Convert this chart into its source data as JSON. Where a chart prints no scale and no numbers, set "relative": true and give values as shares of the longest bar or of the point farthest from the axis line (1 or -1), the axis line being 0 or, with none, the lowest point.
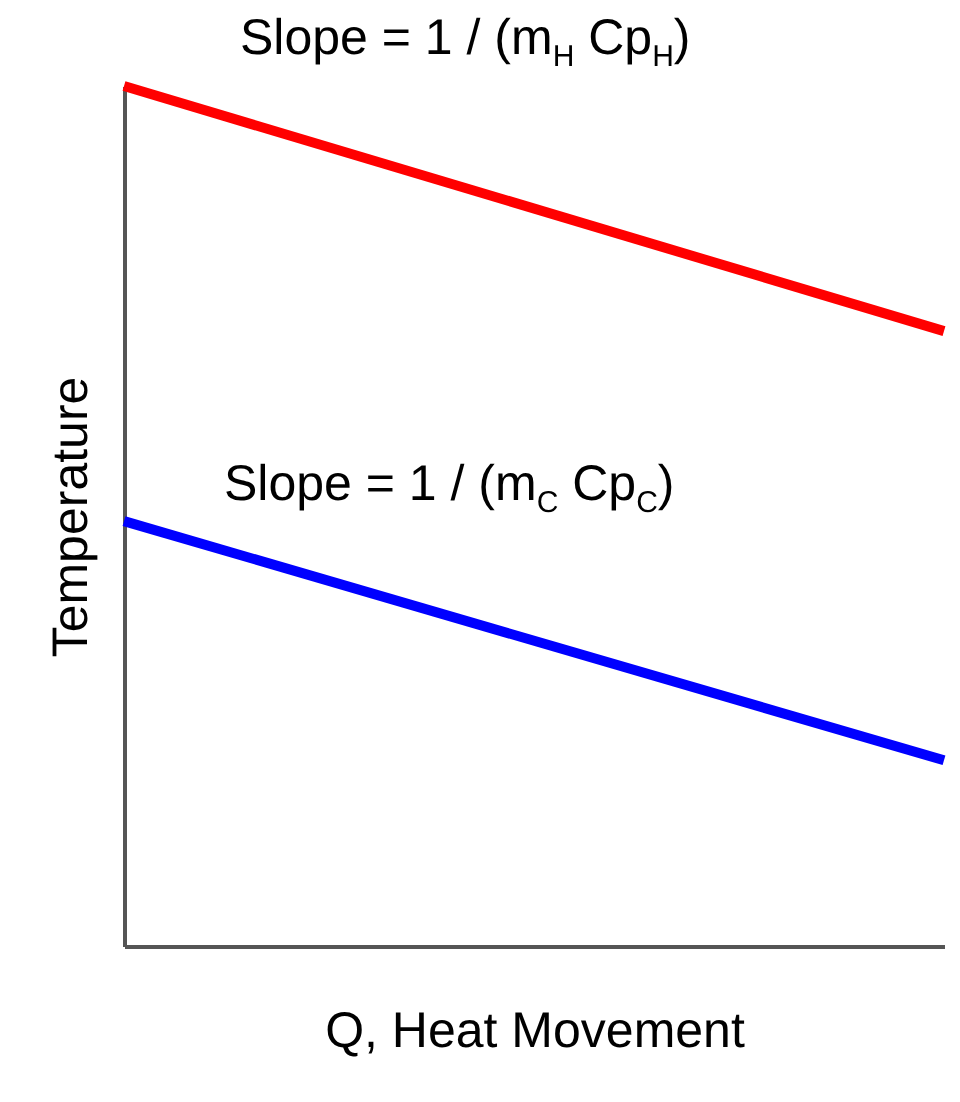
{
  "chart_data": {
    "type": "line",
    "xlabel": "Q, Heat Movement",
    "ylabel": "Temperature",
    "categories": [
      null,
      null
    ],
    "relative": true,
    "tick_labels": false,
    "grid": false,
    "legend": false,
    "marker": "none",
    "line_style": "solid",
    "series": [
      {
        "color": "#ff0000",
        "values": [
          1,
          0.715
        ]
      },
      {
        "color": "#0000ff",
        "values": [
          0.494,
          0.216
        ]
      }
    ],
    "annotations": [
      "Slope = 1 / (m$_{H}$ Cp$_{H}$)",
      "Slope = 1 / (m$_{C}$ Cp$_{C}$)"
    ]
  }
}
